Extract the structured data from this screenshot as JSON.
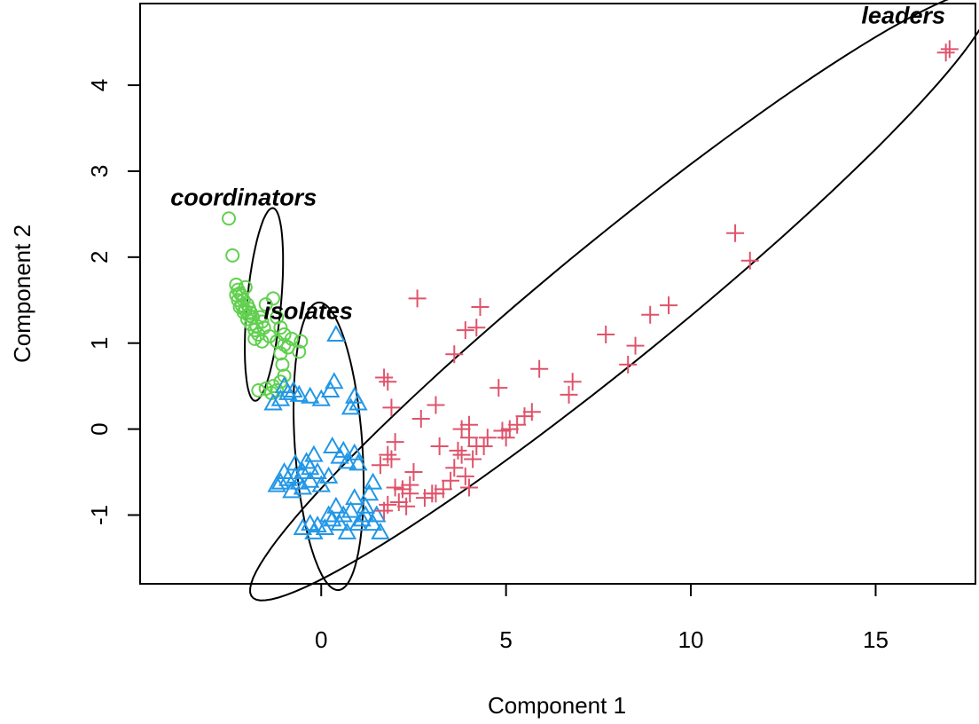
{
  "chart_data": {
    "type": "scatter",
    "title": "",
    "xlabel": "Component 1",
    "ylabel": "Component 2",
    "xlim": [
      -4.9,
      17.7
    ],
    "ylim": [
      -1.8,
      4.95
    ],
    "xticks": [
      0,
      5,
      10,
      15
    ],
    "yticks": [
      -1,
      0,
      1,
      2,
      3,
      4
    ],
    "grid": false,
    "legend": "none",
    "series": [
      {
        "name": "coordinators",
        "marker": "circle",
        "color": "#61D04F",
        "points": [
          [
            -2.5,
            2.45
          ],
          [
            -2.4,
            2.02
          ],
          [
            -2.3,
            1.68
          ],
          [
            -2.25,
            1.62
          ],
          [
            -2.2,
            1.58
          ],
          [
            -2.15,
            1.55
          ],
          [
            -2.1,
            1.5
          ],
          [
            -2.05,
            1.65
          ],
          [
            -2.0,
            1.45
          ],
          [
            -1.95,
            1.4
          ],
          [
            -1.9,
            1.35
          ],
          [
            -1.85,
            1.3
          ],
          [
            -2.2,
            1.42
          ],
          [
            -2.1,
            1.36
          ],
          [
            -2.0,
            1.28
          ],
          [
            -1.9,
            1.22
          ],
          [
            -1.8,
            1.15
          ],
          [
            -1.7,
            1.1
          ],
          [
            -1.6,
            1.25
          ],
          [
            -1.5,
            1.45
          ],
          [
            -1.3,
            1.52
          ],
          [
            -1.2,
            1.3
          ],
          [
            -1.1,
            1.18
          ],
          [
            -1.0,
            1.1
          ],
          [
            -1.4,
            1.08
          ],
          [
            -1.6,
            1.02
          ],
          [
            -1.8,
            1.05
          ],
          [
            -1.2,
            1.02
          ],
          [
            -1.0,
            0.98
          ],
          [
            -0.9,
            0.95
          ],
          [
            -0.6,
            0.9
          ],
          [
            -0.55,
            1.02
          ],
          [
            -0.8,
            1.05
          ],
          [
            -1.1,
            0.88
          ],
          [
            -1.05,
            0.75
          ],
          [
            -1.0,
            0.62
          ],
          [
            -1.1,
            0.55
          ],
          [
            -1.3,
            0.5
          ],
          [
            -1.5,
            0.47
          ],
          [
            -1.7,
            0.45
          ],
          [
            -1.2,
            0.45
          ],
          [
            -1.35,
            0.42
          ],
          [
            -2.25,
            1.5
          ],
          [
            -2.15,
            1.44
          ],
          [
            -2.05,
            1.38
          ],
          [
            -1.95,
            1.32
          ],
          [
            -2.3,
            1.56
          ],
          [
            -1.75,
            1.2
          ],
          [
            -1.65,
            1.3
          ],
          [
            -1.55,
            1.18
          ]
        ]
      },
      {
        "name": "isolates",
        "marker": "triangle",
        "color": "#2297E6",
        "points": [
          [
            0.4,
            1.1
          ],
          [
            0.35,
            0.55
          ],
          [
            0.0,
            0.35
          ],
          [
            0.25,
            0.45
          ],
          [
            0.9,
            0.38
          ],
          [
            1.0,
            0.3
          ],
          [
            0.8,
            0.25
          ],
          [
            -0.3,
            0.38
          ],
          [
            -0.6,
            0.4
          ],
          [
            -0.9,
            0.42
          ],
          [
            -0.75,
            0.45
          ],
          [
            -1.1,
            0.35
          ],
          [
            -1.3,
            0.3
          ],
          [
            -1.0,
            0.5
          ],
          [
            0.3,
            -0.2
          ],
          [
            0.5,
            -0.32
          ],
          [
            0.7,
            -0.38
          ],
          [
            0.9,
            -0.28
          ],
          [
            1.0,
            -0.4
          ],
          [
            0.6,
            -0.25
          ],
          [
            -0.2,
            -0.3
          ],
          [
            -0.3,
            -0.45
          ],
          [
            -0.5,
            -0.5
          ],
          [
            -0.7,
            -0.55
          ],
          [
            -0.9,
            -0.58
          ],
          [
            -1.1,
            -0.62
          ],
          [
            -1.2,
            -0.65
          ],
          [
            -0.8,
            -0.72
          ],
          [
            -0.5,
            -0.68
          ],
          [
            -0.3,
            -0.6
          ],
          [
            0.0,
            -0.65
          ],
          [
            -0.6,
            -0.62
          ],
          [
            -1.0,
            -0.5
          ],
          [
            -0.4,
            -0.38
          ],
          [
            -0.1,
            -0.5
          ],
          [
            -0.7,
            -0.4
          ],
          [
            0.2,
            -0.55
          ],
          [
            1.4,
            -0.62
          ],
          [
            1.3,
            -0.75
          ],
          [
            1.2,
            -0.9
          ],
          [
            1.1,
            -1.05
          ],
          [
            1.5,
            -1.0
          ],
          [
            1.6,
            -1.2
          ],
          [
            0.9,
            -0.8
          ],
          [
            0.8,
            -0.95
          ],
          [
            0.6,
            -1.0
          ],
          [
            0.5,
            -1.1
          ],
          [
            0.3,
            -1.05
          ],
          [
            0.1,
            -1.15
          ],
          [
            -0.1,
            -1.12
          ],
          [
            -0.3,
            -1.1
          ],
          [
            -0.5,
            -1.15
          ],
          [
            -0.2,
            -1.2
          ],
          [
            0.2,
            -1.0
          ],
          [
            1.0,
            -1.1
          ],
          [
            1.4,
            -1.1
          ],
          [
            0.7,
            -1.2
          ],
          [
            0.4,
            -0.9
          ],
          [
            1.2,
            -1.0
          ]
        ]
      },
      {
        "name": "leaders",
        "marker": "plus",
        "color": "#DF536B",
        "points": [
          [
            16.9,
            4.38
          ],
          [
            17.0,
            4.42
          ],
          [
            11.2,
            2.28
          ],
          [
            11.6,
            1.96
          ],
          [
            9.4,
            1.44
          ],
          [
            8.9,
            1.33
          ],
          [
            8.5,
            0.97
          ],
          [
            8.3,
            0.75
          ],
          [
            7.7,
            1.1
          ],
          [
            6.8,
            0.55
          ],
          [
            6.7,
            0.4
          ],
          [
            5.9,
            0.7
          ],
          [
            5.7,
            0.2
          ],
          [
            5.5,
            0.15
          ],
          [
            5.3,
            0.05
          ],
          [
            5.1,
            0.0
          ],
          [
            4.9,
            -0.02
          ],
          [
            4.8,
            0.48
          ],
          [
            4.3,
            1.42
          ],
          [
            4.2,
            1.18
          ],
          [
            3.9,
            1.15
          ],
          [
            3.6,
            0.87
          ],
          [
            2.6,
            1.52
          ],
          [
            4.0,
            0.05
          ],
          [
            4.0,
            -0.1
          ],
          [
            3.8,
            -0.3
          ],
          [
            4.1,
            -0.35
          ],
          [
            4.2,
            -0.2
          ],
          [
            3.6,
            -0.45
          ],
          [
            3.5,
            -0.6
          ],
          [
            3.3,
            -0.7
          ],
          [
            3.1,
            -0.75
          ],
          [
            2.8,
            -0.8
          ],
          [
            2.4,
            -0.75
          ],
          [
            2.2,
            -0.7
          ],
          [
            2.0,
            -0.68
          ],
          [
            2.5,
            -0.5
          ],
          [
            2.7,
            0.12
          ],
          [
            3.1,
            0.28
          ],
          [
            3.2,
            -0.2
          ],
          [
            3.0,
            -0.75
          ],
          [
            2.3,
            -0.9
          ],
          [
            2.1,
            -0.85
          ],
          [
            1.8,
            -0.88
          ],
          [
            1.7,
            -0.95
          ],
          [
            1.8,
            0.55
          ],
          [
            1.7,
            0.6
          ],
          [
            1.9,
            0.25
          ],
          [
            2.0,
            -0.15
          ],
          [
            1.8,
            -0.3
          ],
          [
            1.9,
            -0.35
          ],
          [
            4.0,
            -0.68
          ],
          [
            3.9,
            -0.55
          ],
          [
            4.4,
            -0.2
          ],
          [
            4.5,
            -0.1
          ],
          [
            3.8,
            0.0
          ],
          [
            3.7,
            -0.25
          ],
          [
            2.4,
            -0.65
          ],
          [
            1.6,
            -0.42
          ],
          [
            5.0,
            -0.1
          ]
        ]
      }
    ],
    "ellipses": [
      {
        "label": "coordinators",
        "cx": -1.55,
        "cy": 1.45,
        "rx": 0.45,
        "ry": 1.15,
        "angle_deg": -14
      },
      {
        "label": "isolates",
        "cx": 0.2,
        "cy": -0.2,
        "rx": 1.7,
        "ry": 0.9,
        "angle_deg": -78
      },
      {
        "label": "leaders",
        "cx": 8.1,
        "cy": 1.55,
        "rx": 10.6,
        "ry": 0.85,
        "angle_deg": 19
      }
    ],
    "annotations": [
      {
        "text": "coordinators",
        "x": -2.1,
        "y": 2.6
      },
      {
        "text": "isolates",
        "x": -0.35,
        "y": 1.28
      },
      {
        "text": "leaders",
        "x": 15.75,
        "y": 4.72
      }
    ]
  }
}
